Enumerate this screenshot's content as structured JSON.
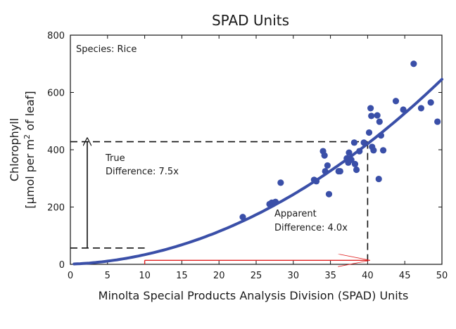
{
  "chart_data": {
    "type": "scatter",
    "title": "SPAD Units",
    "xlabel": "Minolta Special Products Analysis Division (SPAD) Units",
    "ylabel_line1": "Chlorophyll",
    "ylabel_line2_pre": "[µmol per m",
    "ylabel_line2_sup": "2",
    "ylabel_line2_post": " of leaf]",
    "xlim": [
      0,
      50
    ],
    "ylim": [
      0,
      800
    ],
    "xticks": [
      0,
      5,
      10,
      15,
      20,
      25,
      30,
      35,
      40,
      45,
      50
    ],
    "yticks": [
      0,
      200,
      400,
      600,
      800
    ],
    "grid": false,
    "points": [
      [
        23.2,
        165
      ],
      [
        26.8,
        210
      ],
      [
        27.1,
        215
      ],
      [
        27.6,
        218
      ],
      [
        28.3,
        285
      ],
      [
        32.8,
        295
      ],
      [
        33.1,
        290
      ],
      [
        34.0,
        395
      ],
      [
        34.2,
        380
      ],
      [
        34.3,
        325
      ],
      [
        34.6,
        345
      ],
      [
        34.8,
        245
      ],
      [
        36.1,
        325
      ],
      [
        36.3,
        325
      ],
      [
        37.2,
        370
      ],
      [
        37.4,
        355
      ],
      [
        37.5,
        390
      ],
      [
        37.8,
        365
      ],
      [
        38.2,
        425
      ],
      [
        38.3,
        350
      ],
      [
        38.5,
        330
      ],
      [
        38.9,
        395
      ],
      [
        39.5,
        425
      ],
      [
        40.2,
        460
      ],
      [
        40.4,
        545
      ],
      [
        40.5,
        518
      ],
      [
        40.6,
        410
      ],
      [
        40.8,
        398
      ],
      [
        41.3,
        520
      ],
      [
        41.5,
        298
      ],
      [
        41.6,
        498
      ],
      [
        41.8,
        450
      ],
      [
        42.1,
        398
      ],
      [
        43.8,
        570
      ],
      [
        44.8,
        540
      ],
      [
        46.2,
        700
      ],
      [
        47.2,
        545
      ],
      [
        48.5,
        565
      ],
      [
        49.4,
        498
      ]
    ],
    "fit_curve": {
      "coefficients": {
        "a": 0.06,
        "b": 0.227,
        "c": 0.15
      },
      "color": "#3a4fa8",
      "x_range": [
        0.5,
        50
      ]
    },
    "point_color": "#3a4fa8",
    "annotations": {
      "species": "Species: Rice",
      "true_line1": "True",
      "true_line2": "Difference: 7.5x",
      "apparent_line1": "Apparent",
      "apparent_line2": "Difference: 4.0x",
      "apparent_color": "#e02020",
      "marker_low_x": 10,
      "marker_high_x": 40,
      "marker_low_y": 57,
      "marker_high_y": 428
    }
  }
}
